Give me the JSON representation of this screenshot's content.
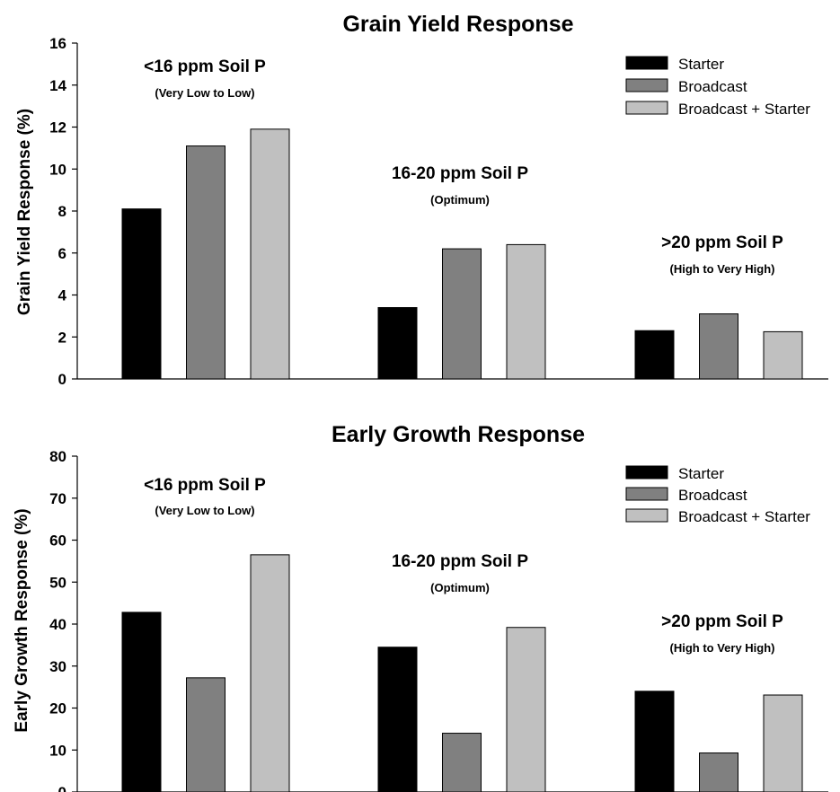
{
  "series_colors": [
    "#000000",
    "#808080",
    "#c0c0c0"
  ],
  "chart_data": [
    {
      "type": "bar",
      "title": "Grain Yield Response",
      "ylabel": "Grain Yield Response (%)",
      "xlabel": "",
      "ylim": [
        0,
        16
      ],
      "yticks": [
        "0",
        "2",
        "4",
        "6",
        "8",
        "10",
        "12",
        "14",
        "16"
      ],
      "grid": false,
      "legend_position": "top-right",
      "categories": [
        "<16 ppm Soil P",
        "16-20 ppm Soil P",
        ">20 ppm Soil P"
      ],
      "category_notes": [
        "(Very Low to Low)",
        "(Optimum)",
        "(High to Very High)"
      ],
      "series": [
        {
          "name": "Starter",
          "values": [
            8.1,
            3.4,
            2.3
          ]
        },
        {
          "name": "Broadcast",
          "values": [
            11.1,
            6.2,
            3.1
          ]
        },
        {
          "name": "Broadcast + Starter",
          "values": [
            11.9,
            6.4,
            2.25
          ]
        }
      ]
    },
    {
      "type": "bar",
      "title": "Early Growth Response",
      "ylabel": "Early Growth Response (%)",
      "xlabel": "",
      "ylim": [
        0,
        80
      ],
      "yticks": [
        "0",
        "10",
        "20",
        "30",
        "40",
        "50",
        "60",
        "70",
        "80"
      ],
      "grid": false,
      "legend_position": "top-right",
      "categories": [
        "<16 ppm Soil P",
        "16-20 ppm Soil P",
        ">20 ppm Soil P"
      ],
      "category_notes": [
        "(Very Low to Low)",
        "(Optimum)",
        "(High to Very High)"
      ],
      "series": [
        {
          "name": "Starter",
          "values": [
            42.8,
            34.5,
            24.0
          ]
        },
        {
          "name": "Broadcast",
          "values": [
            27.2,
            14.0,
            9.3
          ]
        },
        {
          "name": "Broadcast + Starter",
          "values": [
            56.5,
            39.2,
            23.1
          ]
        }
      ]
    }
  ]
}
